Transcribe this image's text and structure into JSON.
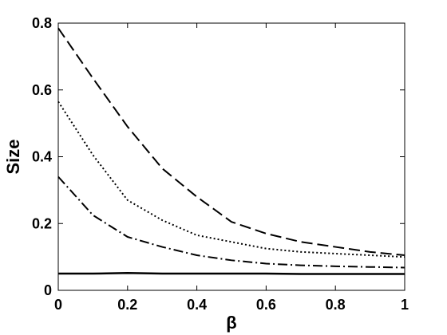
{
  "chart_data": {
    "type": "line",
    "title": "",
    "xlabel": "β",
    "ylabel": "Size",
    "xlim": [
      0,
      1
    ],
    "ylim": [
      0,
      0.8
    ],
    "xticks": [
      "0",
      "0.2",
      "0.4",
      "0.6",
      "0.8",
      "1"
    ],
    "yticks": [
      "0",
      "0.2",
      "0.4",
      "0.6",
      "0.8"
    ],
    "grid": false,
    "x": [
      0,
      0.1,
      0.2,
      0.3,
      0.4,
      0.5,
      0.6,
      0.7,
      0.8,
      0.9,
      1
    ],
    "series": [
      {
        "style": "dashed",
        "color": "#000000",
        "values": [
          0.785,
          0.635,
          0.49,
          0.365,
          0.28,
          0.205,
          0.17,
          0.145,
          0.13,
          0.115,
          0.105
        ]
      },
      {
        "style": "dotted",
        "color": "#000000",
        "values": [
          0.565,
          0.405,
          0.27,
          0.21,
          0.165,
          0.145,
          0.125,
          0.115,
          0.11,
          0.105,
          0.1
        ]
      },
      {
        "style": "dashdot",
        "color": "#000000",
        "values": [
          0.34,
          0.225,
          0.16,
          0.13,
          0.105,
          0.09,
          0.08,
          0.075,
          0.072,
          0.07,
          0.068
        ]
      },
      {
        "style": "solid",
        "color": "#000000",
        "values": [
          0.05,
          0.05,
          0.052,
          0.05,
          0.05,
          0.05,
          0.05,
          0.049,
          0.049,
          0.049,
          0.049
        ]
      }
    ]
  }
}
